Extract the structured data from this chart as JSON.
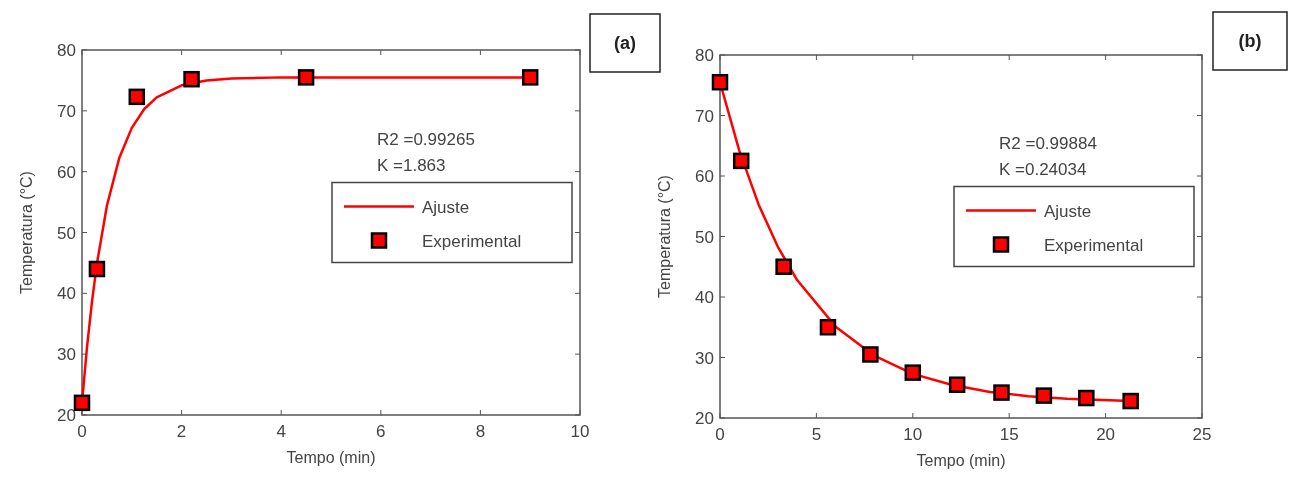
{
  "chart_data": [
    {
      "type": "line",
      "xlabel": "Tempo (min)",
      "ylabel": "Temperatura (°C)",
      "xlim": [
        0,
        10
      ],
      "xticks": [
        0,
        2,
        4,
        6,
        8,
        10
      ],
      "ylim": [
        20,
        80
      ],
      "yticks": [
        20,
        30,
        40,
        50,
        60,
        70,
        80
      ],
      "legend": "right",
      "grid": false,
      "annotations": [
        "(a)",
        "R2 =0.99265",
        "K =1.863"
      ],
      "series": [
        {
          "name": "Ajuste",
          "color": "#ff0000",
          "marker": "none",
          "line_style": "solid",
          "x": [
            0,
            0.1,
            0.2,
            0.3,
            0.5,
            0.75,
            1,
            1.25,
            1.5,
            2,
            2.5,
            3,
            4,
            6,
            9
          ],
          "values": [
            22,
            31.1,
            38.6,
            44.9,
            54.4,
            62.3,
            67.2,
            70.3,
            72.2,
            74.2,
            75,
            75.3,
            75.5,
            75.5,
            75.5
          ]
        },
        {
          "name": "Experimental",
          "type": "scatter",
          "color": "#ff0000",
          "marker": "square",
          "x": [
            0,
            0.3,
            1.1,
            2.2,
            4.5,
            9
          ],
          "values": [
            22,
            44,
            72.3,
            75.2,
            75.5,
            75.5
          ]
        }
      ]
    },
    {
      "type": "line",
      "xlabel": "Tempo (min)",
      "ylabel": "Temperatura (°C)",
      "xlim": [
        0,
        25
      ],
      "xticks": [
        0,
        5,
        10,
        15,
        20,
        25
      ],
      "ylim": [
        20,
        80
      ],
      "yticks": [
        20,
        30,
        40,
        50,
        60,
        70,
        80
      ],
      "legend": "right",
      "grid": false,
      "annotations": [
        "(b)",
        "R2 =0.99884",
        "K =0.24034"
      ],
      "series": [
        {
          "name": "Ajuste",
          "color": "#ff0000",
          "marker": "none",
          "line_style": "solid",
          "x": [
            0,
            1,
            2,
            3,
            4,
            6,
            8,
            10,
            12,
            14,
            16,
            18,
            21.3
          ],
          "values": [
            75.5,
            64.2,
            55.3,
            48.3,
            42.8,
            35.1,
            30.3,
            27.3,
            25.5,
            24.3,
            23.6,
            23.2,
            22.8
          ]
        },
        {
          "name": "Experimental",
          "type": "scatter",
          "color": "#ff0000",
          "marker": "square",
          "x": [
            0,
            1.1,
            3.3,
            5.6,
            7.8,
            10,
            12.3,
            14.6,
            16.8,
            19,
            21.3
          ],
          "values": [
            75.5,
            62.5,
            45,
            35,
            30.5,
            27.5,
            25.5,
            24.2,
            23.7,
            23.3,
            22.8
          ]
        }
      ]
    }
  ]
}
